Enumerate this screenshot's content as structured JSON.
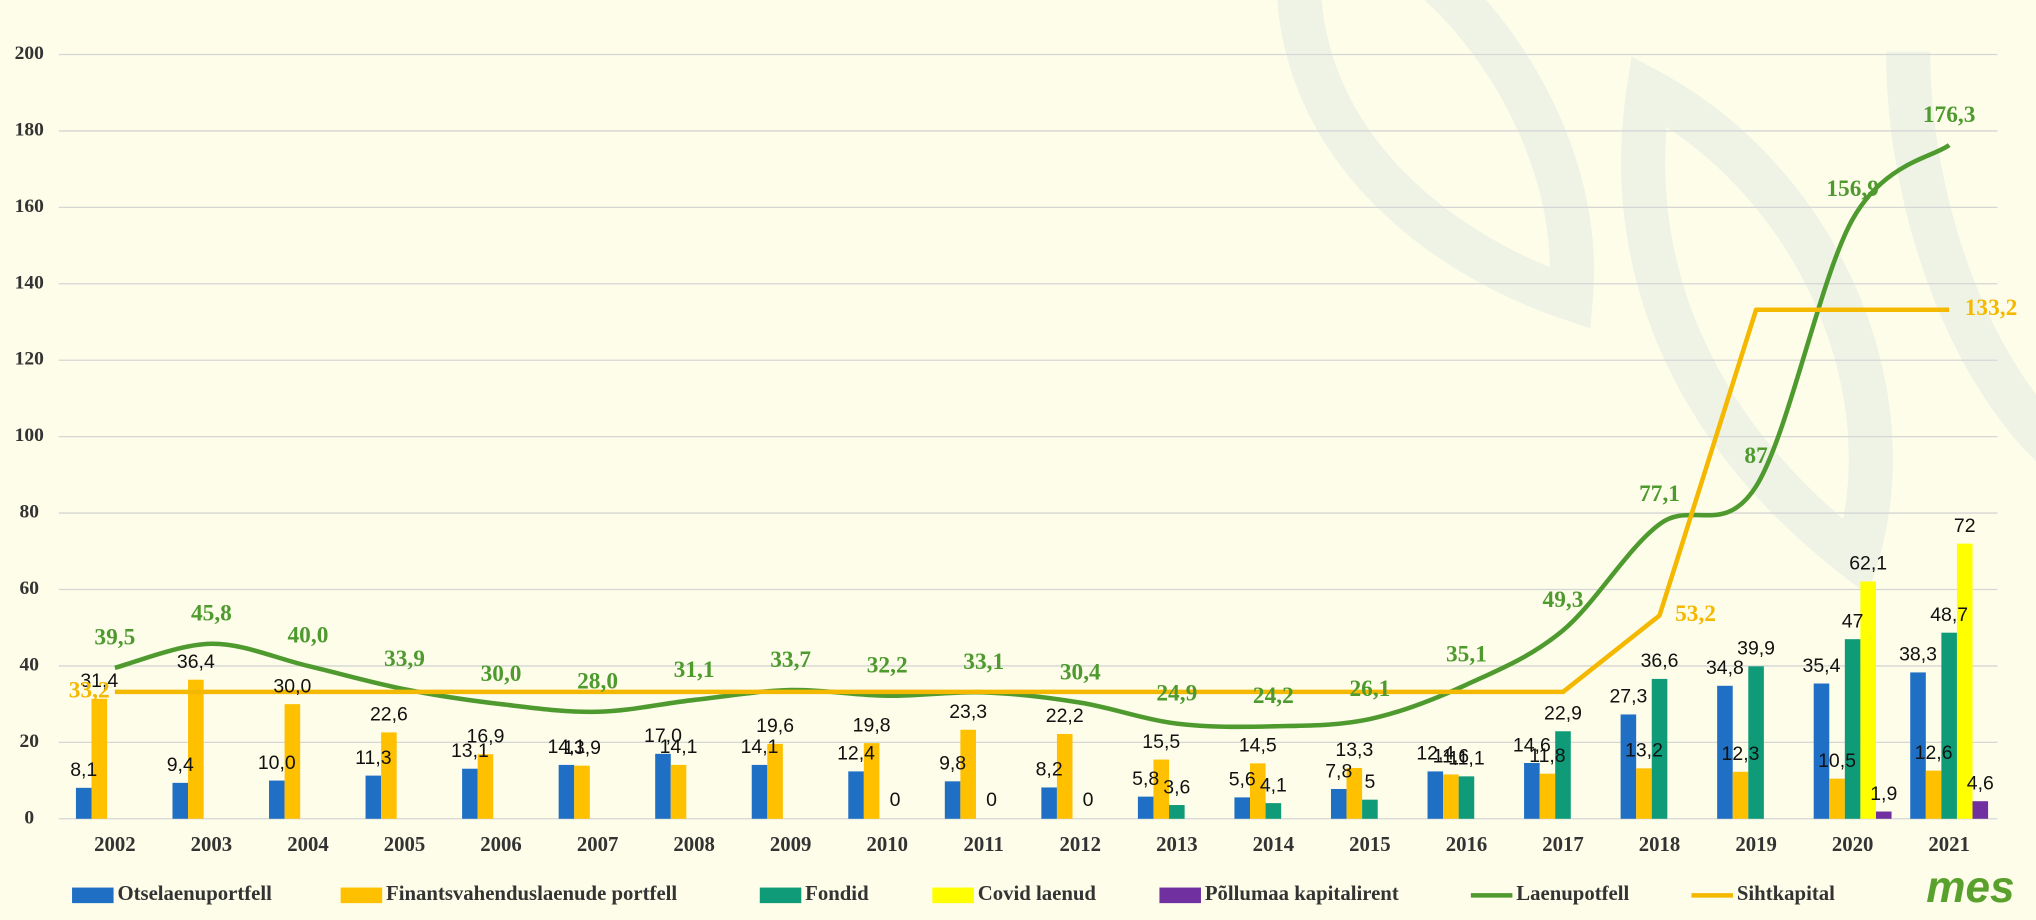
{
  "chart_data": {
    "type": "bar",
    "categories": [
      "2002",
      "2003",
      "2004",
      "2005",
      "2006",
      "2007",
      "2008",
      "2009",
      "2010",
      "2011",
      "2012",
      "2013",
      "2014",
      "2015",
      "2016",
      "2017",
      "2018",
      "2019",
      "2020",
      "2021"
    ],
    "ylim": [
      0,
      200
    ],
    "yticks": [
      0,
      20,
      40,
      60,
      80,
      100,
      120,
      140,
      160,
      180,
      200
    ],
    "grid": true,
    "legend": "bottom",
    "logo": "mes",
    "series": [
      {
        "name": "Otselaenuportfell",
        "type": "bar",
        "color": "#1f6fc5",
        "values": [
          8.1,
          9.4,
          10.0,
          11.3,
          13.1,
          14.1,
          17.0,
          14.1,
          12.4,
          9.8,
          8.2,
          5.8,
          5.6,
          7.8,
          12.4,
          14.6,
          27.3,
          34.8,
          35.4,
          38.3
        ],
        "value_labels": [
          "8,1",
          "9,4",
          "10,0",
          "11,3",
          "13,1",
          "14,1",
          "17,0",
          "14,1",
          "12,4",
          "9,8",
          "8,2",
          "5,8",
          "5,6",
          "7,8",
          "12,4",
          "14,6",
          "27,3",
          "34,8",
          "35,4",
          "38,3"
        ]
      },
      {
        "name": "Finantsvahenduslaenude portfell",
        "type": "bar",
        "color": "#ffc000",
        "values": [
          31.4,
          36.4,
          30.0,
          22.6,
          16.9,
          13.9,
          14.1,
          19.6,
          19.8,
          23.3,
          22.2,
          15.5,
          14.5,
          13.3,
          11.6,
          11.8,
          13.2,
          12.3,
          10.5,
          12.6
        ],
        "value_labels": [
          "31,4",
          "36,4",
          "30,0",
          "22,6",
          "16,9",
          "13,9",
          "14,1",
          "19,6",
          "19,8",
          "23,3",
          "22,2",
          "15,5",
          "14,5",
          "13,3",
          "11,6",
          "11,8",
          "13,2",
          "12,3",
          "10,5",
          "12,6"
        ]
      },
      {
        "name": "Fondid",
        "type": "bar",
        "color": "#0f9a78",
        "values": [
          null,
          null,
          null,
          null,
          null,
          null,
          null,
          null,
          0,
          0,
          0,
          3.6,
          4.1,
          5,
          11.1,
          22.9,
          36.6,
          39.9,
          47,
          48.7
        ],
        "value_labels": [
          null,
          null,
          null,
          null,
          null,
          null,
          null,
          null,
          "0",
          "0",
          "0",
          "3,6",
          "4,1",
          "5",
          "11,1",
          "22,9",
          "36,6",
          "39,9",
          "47",
          "48,7"
        ]
      },
      {
        "name": "Covid laenud",
        "type": "bar",
        "color": "#ffff00",
        "values": [
          null,
          null,
          null,
          null,
          null,
          null,
          null,
          null,
          null,
          null,
          null,
          null,
          null,
          null,
          null,
          null,
          null,
          null,
          62.1,
          72
        ],
        "value_labels": [
          null,
          null,
          null,
          null,
          null,
          null,
          null,
          null,
          null,
          null,
          null,
          null,
          null,
          null,
          null,
          null,
          null,
          null,
          "62,1",
          "72"
        ]
      },
      {
        "name": "Põllumaa kapitalirent",
        "type": "bar",
        "color": "#7030a0",
        "values": [
          null,
          null,
          null,
          null,
          null,
          null,
          null,
          null,
          null,
          null,
          null,
          null,
          null,
          null,
          null,
          null,
          null,
          null,
          1.9,
          4.6
        ],
        "value_labels": [
          null,
          null,
          null,
          null,
          null,
          null,
          null,
          null,
          null,
          null,
          null,
          null,
          null,
          null,
          null,
          null,
          null,
          null,
          "1,9",
          "4,6"
        ]
      },
      {
        "name": "Laenupotfell",
        "type": "line",
        "smooth": true,
        "color": "#4e9a2f",
        "values": [
          39.5,
          45.8,
          40.0,
          33.9,
          30.0,
          28.0,
          31.1,
          33.7,
          32.2,
          33.1,
          30.4,
          24.9,
          24.2,
          26.1,
          35.1,
          49.3,
          77.1,
          87,
          156.9,
          176.3
        ],
        "value_labels": [
          "39,5",
          "45,8",
          "40,0",
          "33,9",
          "30,0",
          "28,0",
          "31,1",
          "33,7",
          "32,2",
          "33,1",
          "30,4",
          "24,9",
          "24,2",
          "26,1",
          "35,1",
          "49,3",
          "77,1",
          "87",
          "156,9",
          "176,3"
        ]
      },
      {
        "name": "Sihtkapital",
        "type": "line",
        "smooth": false,
        "color": "#f5b800",
        "values": [
          33.2,
          33.2,
          33.2,
          33.2,
          33.2,
          33.2,
          33.2,
          33.2,
          33.2,
          33.2,
          33.2,
          33.2,
          33.2,
          33.2,
          33.2,
          33.2,
          53.2,
          133.2,
          133.2,
          133.2
        ],
        "value_labels": [
          "33,2",
          null,
          null,
          null,
          null,
          null,
          null,
          null,
          null,
          null,
          null,
          null,
          null,
          null,
          null,
          null,
          "53,2",
          null,
          null,
          "133,2"
        ]
      }
    ]
  }
}
